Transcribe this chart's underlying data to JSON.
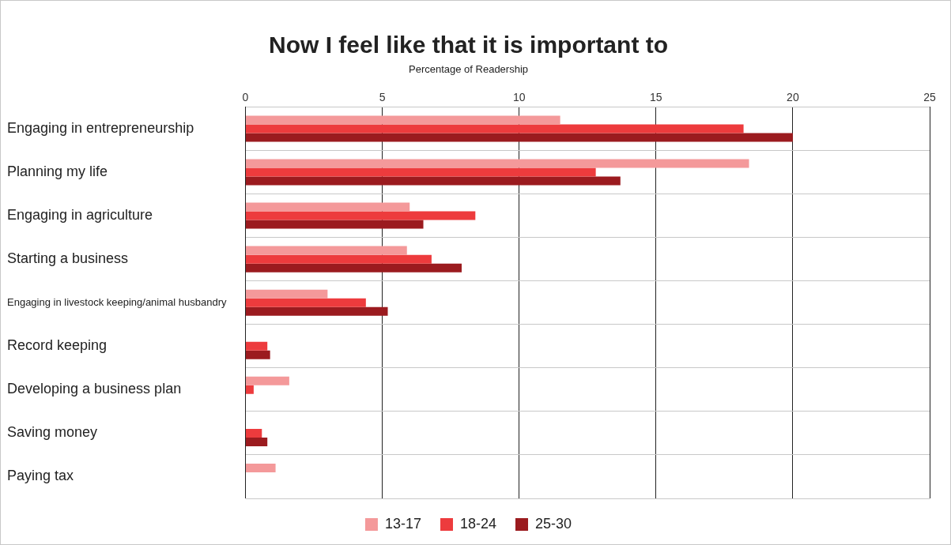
{
  "chart_data": {
    "type": "bar",
    "orientation": "horizontal",
    "title": "Now I feel like that it is important to",
    "subtitle": "Percentage of Readership",
    "categories": [
      "Engaging in entrepreneurship",
      "Planning my life",
      "Engaging in agriculture",
      "Starting a business",
      "Engaging in livestock keeping/animal husbandry",
      "Record keeping",
      "Developing a business plan",
      "Saving money",
      "Paying tax"
    ],
    "series": [
      {
        "name": "13-17",
        "color": "#f4999a",
        "values": [
          11.5,
          18.4,
          6.0,
          5.9,
          3.0,
          null,
          1.6,
          null,
          1.1
        ]
      },
      {
        "name": "18-24",
        "color": "#ed3b3d",
        "values": [
          18.2,
          12.8,
          8.4,
          6.8,
          4.4,
          0.8,
          0.3,
          0.6,
          null
        ]
      },
      {
        "name": "25-30",
        "color": "#9b1b1f",
        "values": [
          20.0,
          13.7,
          6.5,
          7.9,
          5.2,
          0.9,
          null,
          0.8,
          null
        ]
      }
    ],
    "xlim": [
      0,
      25
    ],
    "xticks": [
      0,
      5,
      10,
      15,
      20,
      25
    ],
    "grid": true,
    "legend": "bottom"
  }
}
